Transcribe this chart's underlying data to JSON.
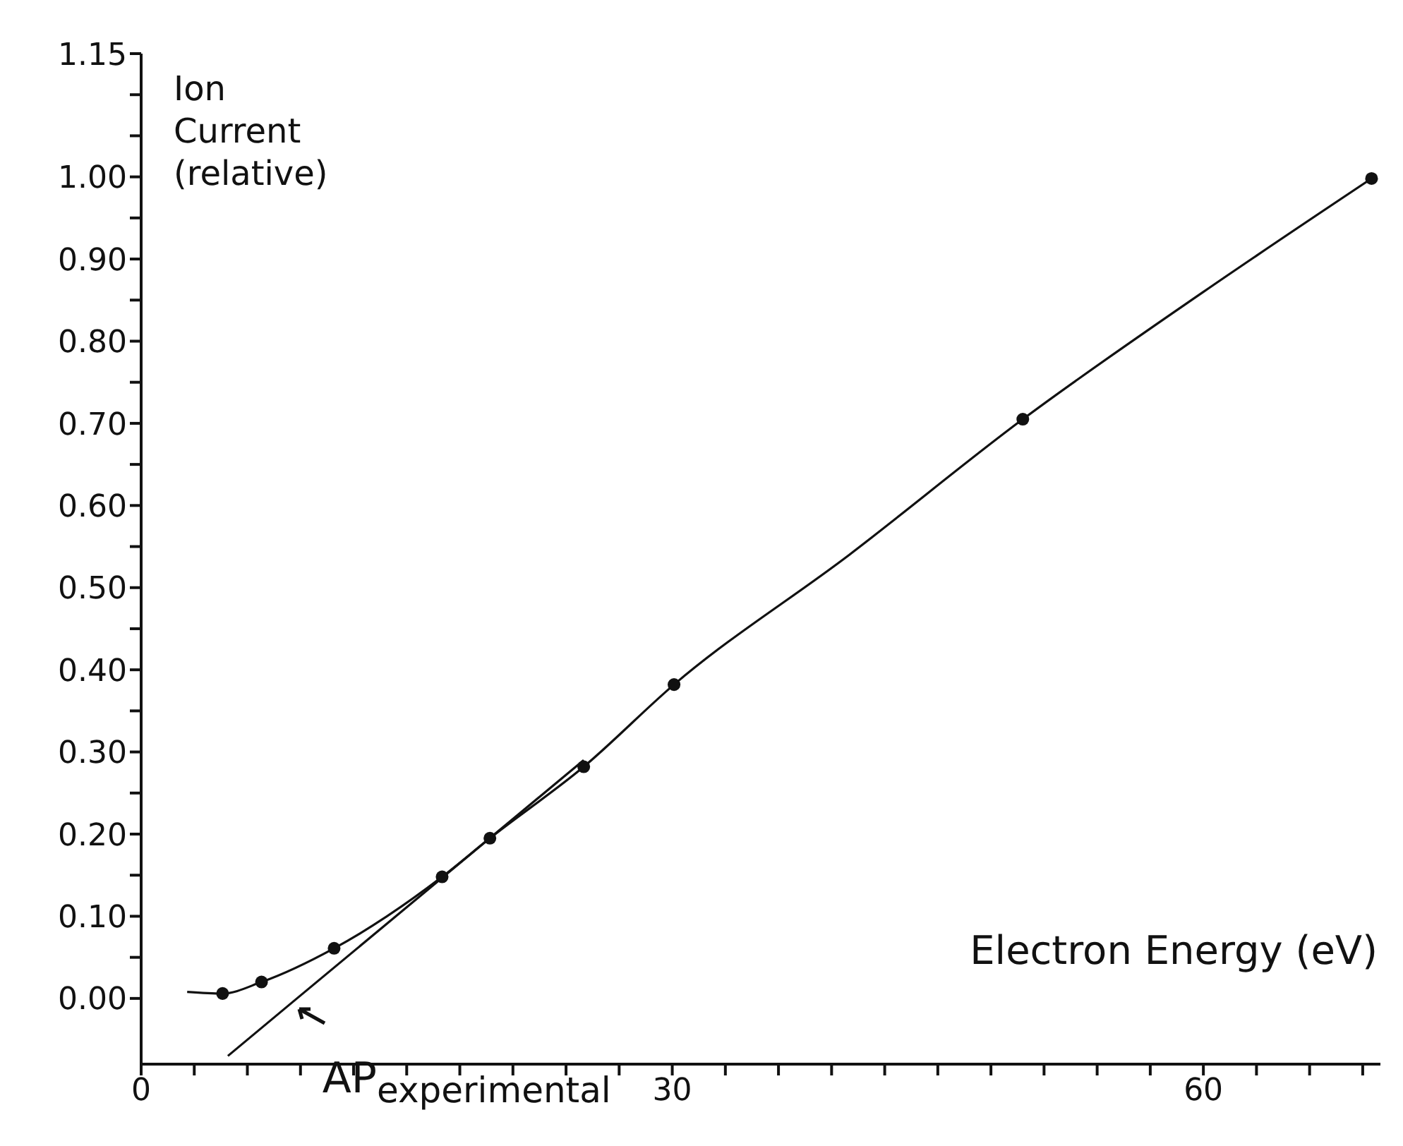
{
  "chart_data": {
    "type": "line",
    "xlabel": "Electron Energy (eV)",
    "ylabel": "Ion\nCurrent\n(relative)",
    "annotations": [
      {
        "text": "AP$_{experimental}$",
        "x": 8.8,
        "y": 0
      }
    ],
    "xlim": [
      0,
      70
    ],
    "ylim": [
      -0.08,
      1.15
    ],
    "xticks": [
      {
        "value": 0,
        "label": "0"
      },
      {
        "value": 3,
        "label": null
      },
      {
        "value": 6,
        "label": null
      },
      {
        "value": 9,
        "label": null
      },
      {
        "value": 12,
        "label": null
      },
      {
        "value": 15,
        "label": null
      },
      {
        "value": 18,
        "label": null
      },
      {
        "value": 21,
        "label": null
      },
      {
        "value": 24,
        "label": null
      },
      {
        "value": 27,
        "label": null
      },
      {
        "value": 30,
        "label": "30"
      },
      {
        "value": 33,
        "label": null
      },
      {
        "value": 36,
        "label": null
      },
      {
        "value": 39,
        "label": null
      },
      {
        "value": 42,
        "label": null
      },
      {
        "value": 45,
        "label": null
      },
      {
        "value": 48,
        "label": null
      },
      {
        "value": 51,
        "label": null
      },
      {
        "value": 54,
        "label": null
      },
      {
        "value": 57,
        "label": null
      },
      {
        "value": 60,
        "label": "60"
      },
      {
        "value": 63,
        "label": null
      },
      {
        "value": 66,
        "label": null
      },
      {
        "value": 69,
        "label": null
      }
    ],
    "yticks": [
      {
        "value": 0,
        "label": "0.00"
      },
      {
        "value": 0.05,
        "label": null
      },
      {
        "value": 0.1,
        "label": "0.10"
      },
      {
        "value": 0.15,
        "label": null
      },
      {
        "value": 0.2,
        "label": "0.20"
      },
      {
        "value": 0.25,
        "label": null
      },
      {
        "value": 0.3,
        "label": "0.30"
      },
      {
        "value": 0.35,
        "label": null
      },
      {
        "value": 0.4,
        "label": "0.40"
      },
      {
        "value": 0.45,
        "label": null
      },
      {
        "value": 0.5,
        "label": "0.50"
      },
      {
        "value": 0.55,
        "label": null
      },
      {
        "value": 0.6,
        "label": "0.60"
      },
      {
        "value": 0.65,
        "label": null
      },
      {
        "value": 0.7,
        "label": "0.70"
      },
      {
        "value": 0.75,
        "label": null
      },
      {
        "value": 0.8,
        "label": "0.80"
      },
      {
        "value": 0.85,
        "label": null
      },
      {
        "value": 0.9,
        "label": "0.90"
      },
      {
        "value": 0.95,
        "label": null
      },
      {
        "value": 1.0,
        "label": "1.00"
      },
      {
        "value": 1.05,
        "label": null
      },
      {
        "value": 1.1,
        "label": null
      },
      {
        "value": 1.15,
        "label": "1.15"
      }
    ],
    "grid": false,
    "series": [
      {
        "color": "#111111",
        "marker": "none",
        "line_style": "solid",
        "x": [
          2.6,
          4.6,
          6.8,
          10.9,
          17.0,
          19.7,
          25.0,
          30.1,
          40,
          49.8,
          60,
          69.5
        ],
        "values": [
          0.008,
          0.006,
          0.02,
          0.061,
          0.148,
          0.195,
          0.282,
          0.382,
          0.54,
          0.705,
          0.86,
          0.998
        ]
      },
      {
        "type": "scatter",
        "color": "#111111",
        "marker": "circle",
        "x": [
          4.6,
          6.8,
          10.9,
          17.0,
          19.7,
          25.0,
          30.1,
          49.8,
          69.5
        ],
        "values": [
          0.006,
          0.02,
          0.061,
          0.148,
          0.195,
          0.282,
          0.382,
          0.705,
          0.998
        ]
      },
      {
        "color": "#111111",
        "marker": "none",
        "line_style": "solid",
        "x": [
          4.9,
          8.8,
          25.0
        ],
        "values": [
          -0.07,
          0,
          0.29
        ]
      }
    ]
  }
}
